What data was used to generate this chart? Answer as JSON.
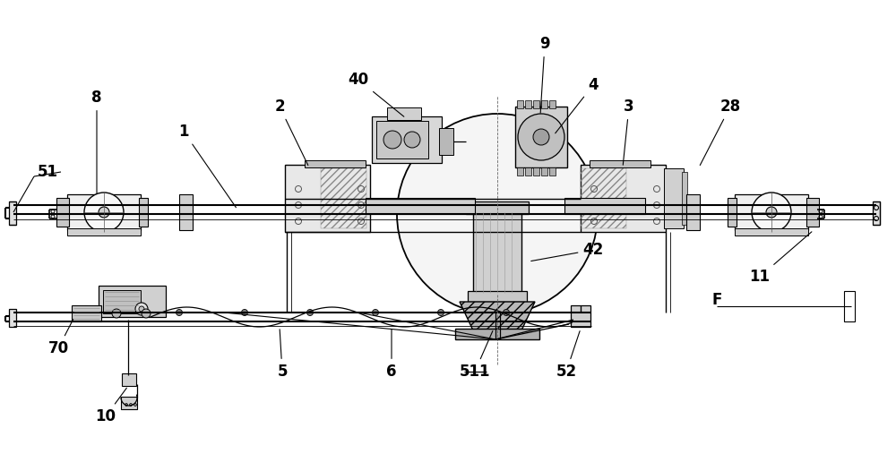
{
  "bg_color": "#ffffff",
  "line_color": "#000000",
  "figsize": [
    10.0,
    5.07
  ],
  "dpi": 100
}
